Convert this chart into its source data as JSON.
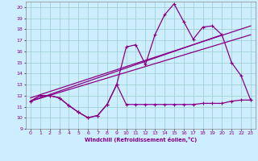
{
  "background_color": "#cceeff",
  "grid_color": "#99cccc",
  "line_color": "#880088",
  "xlim": [
    -0.5,
    23.5
  ],
  "ylim": [
    9,
    20.5
  ],
  "xticks": [
    0,
    1,
    2,
    3,
    4,
    5,
    6,
    7,
    8,
    9,
    10,
    11,
    12,
    13,
    14,
    15,
    16,
    17,
    18,
    19,
    20,
    21,
    22,
    23
  ],
  "yticks": [
    9,
    10,
    11,
    12,
    13,
    14,
    15,
    16,
    17,
    18,
    19,
    20
  ],
  "xlabel": "Windchill (Refroidissement éolien,°C)",
  "series_low_x": [
    0,
    1,
    2,
    3,
    4,
    5,
    6,
    7,
    8,
    9,
    10,
    11,
    12,
    13,
    14,
    15,
    16,
    17,
    18,
    19,
    20,
    21,
    22,
    23
  ],
  "series_low_y": [
    11.5,
    12.0,
    12.0,
    11.8,
    11.1,
    10.5,
    10.0,
    10.2,
    11.2,
    13.0,
    11.2,
    11.2,
    11.2,
    11.2,
    11.2,
    11.2,
    11.2,
    11.2,
    11.3,
    11.3,
    11.3,
    11.5,
    11.6,
    11.6
  ],
  "series_high_x": [
    0,
    1,
    2,
    3,
    4,
    5,
    6,
    7,
    8,
    9,
    10,
    11,
    12,
    13,
    14,
    15,
    16,
    17,
    18,
    19,
    20,
    21,
    22,
    23
  ],
  "series_high_y": [
    11.5,
    12.0,
    12.0,
    11.8,
    11.1,
    10.5,
    10.0,
    10.2,
    11.2,
    13.0,
    16.4,
    16.6,
    14.8,
    17.5,
    19.3,
    20.3,
    18.7,
    17.1,
    18.2,
    18.3,
    17.5,
    15.0,
    13.8,
    11.6
  ],
  "trend1_x": [
    0,
    23
  ],
  "trend1_y": [
    11.5,
    17.5
  ],
  "trend2_x": [
    0,
    23
  ],
  "trend2_y": [
    11.8,
    18.3
  ],
  "trend3_x": [
    0,
    20
  ],
  "trend3_y": [
    11.5,
    17.5
  ]
}
